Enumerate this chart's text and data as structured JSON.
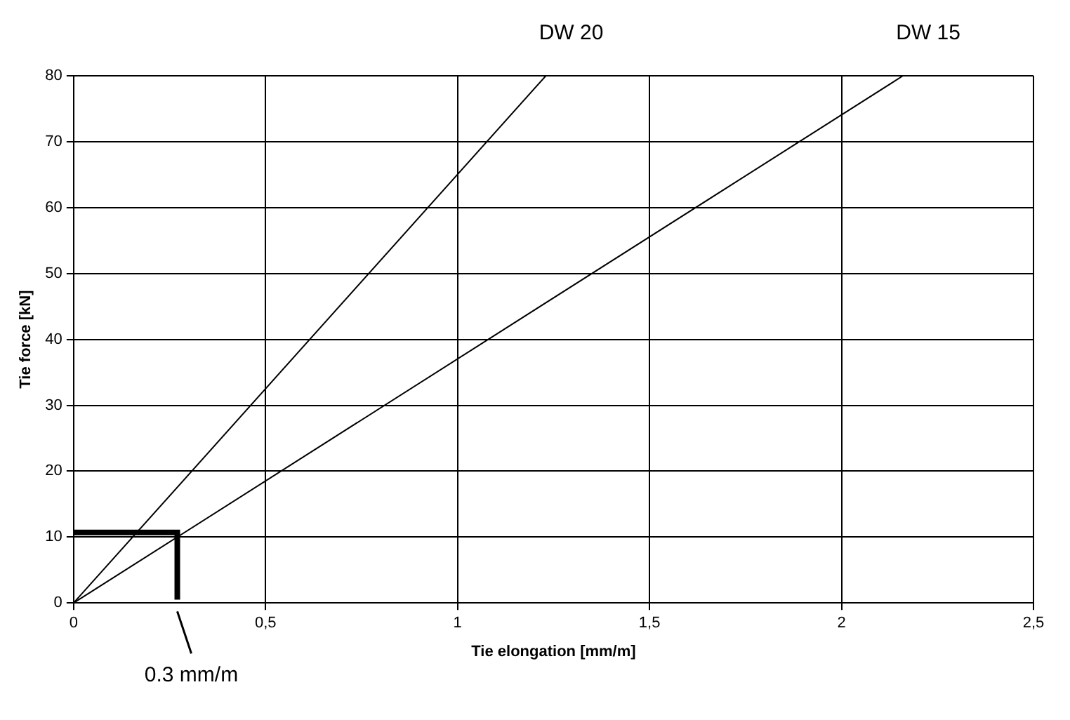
{
  "chart_data": {
    "type": "line",
    "xlabel": "Tie elongation [mm/m]",
    "ylabel": "Tie force [kN]",
    "xlim": [
      0,
      2.5
    ],
    "xticks": [
      0,
      {
        "value": 0.5,
        "label": "0,5"
      },
      1,
      {
        "value": 1.5,
        "label": "1,5"
      },
      2,
      {
        "value": 2.5,
        "label": "2,5"
      }
    ],
    "ylim": [
      0,
      80
    ],
    "yticks": [
      0,
      10,
      20,
      30,
      40,
      50,
      60,
      70,
      80
    ],
    "series": [
      {
        "name": "DW 20",
        "color": "#000000",
        "x": [
          0,
          1.23
        ],
        "values": [
          0,
          80
        ]
      },
      {
        "name": "DW 15",
        "color": "#000000",
        "x": [
          0,
          2.16
        ],
        "values": [
          0,
          80
        ]
      },
      {
        "color": "#000000",
        "x": [
          0,
          0.27,
          0.27
        ],
        "values": [
          10.7,
          10.7,
          0.5
        ]
      }
    ],
    "annotations": [
      {
        "text": "0.3 mm/m",
        "x": 0.27,
        "y": 0
      }
    ],
    "grid": true,
    "legend": false,
    "marker": "none",
    "line_style": "solid"
  }
}
